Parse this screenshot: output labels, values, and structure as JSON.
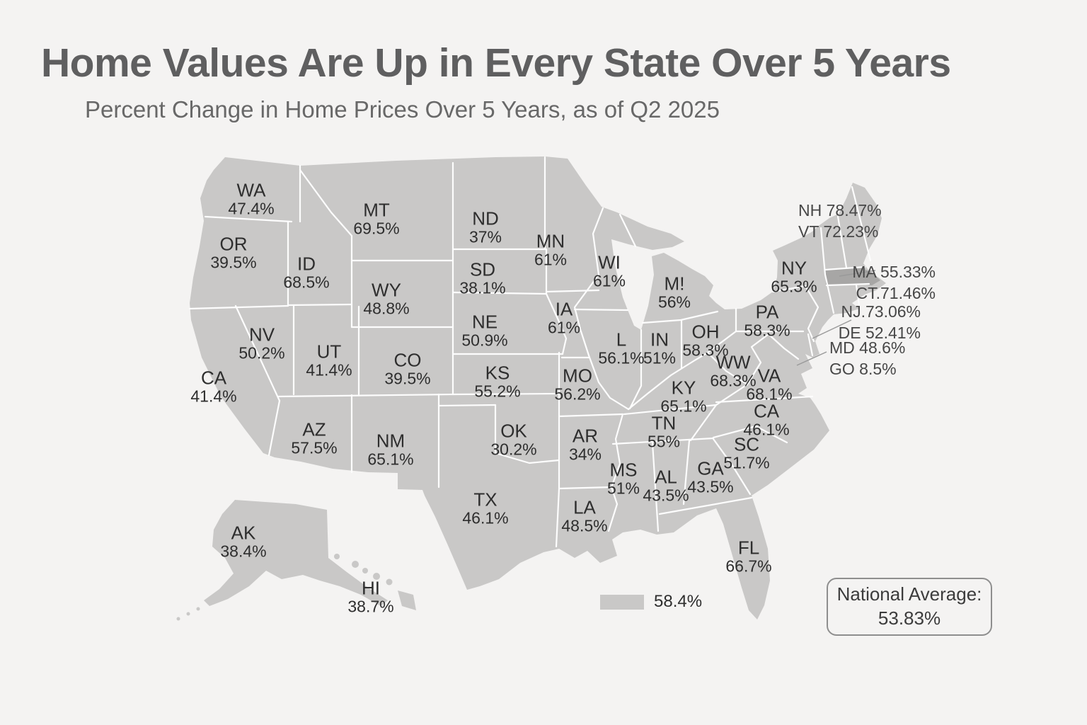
{
  "title": "Home Values Are Up in Every State Over 5 Years",
  "subtitle": "Percent Change in Home Prices Over 5 Years, as of Q2 2025",
  "map": {
    "states": [
      {
        "id": "WA",
        "abbr": "WA",
        "value": "47.4%"
      },
      {
        "id": "OR",
        "abbr": "OR",
        "value": "39.5%"
      },
      {
        "id": "CA",
        "abbr": "CA",
        "value": "41.4%"
      },
      {
        "id": "ID",
        "abbr": "ID",
        "value": "68.5%"
      },
      {
        "id": "NV",
        "abbr": "NV",
        "value": "50.2%"
      },
      {
        "id": "UT",
        "abbr": "UT",
        "value": "41.4%"
      },
      {
        "id": "AZ",
        "abbr": "AZ",
        "value": "57.5%"
      },
      {
        "id": "MT",
        "abbr": "MT",
        "value": "69.5%"
      },
      {
        "id": "WY",
        "abbr": "WY",
        "value": "48.8%"
      },
      {
        "id": "CO",
        "abbr": "CO",
        "value": "39.5%"
      },
      {
        "id": "NM",
        "abbr": "NM",
        "value": "65.1%"
      },
      {
        "id": "ND",
        "abbr": "ND",
        "value": "37%"
      },
      {
        "id": "SD",
        "abbr": "SD",
        "value": "38.1%"
      },
      {
        "id": "NE",
        "abbr": "NE",
        "value": "50.9%"
      },
      {
        "id": "KS",
        "abbr": "KS",
        "value": "55.2%"
      },
      {
        "id": "OK",
        "abbr": "OK",
        "value": "30.2%"
      },
      {
        "id": "TX",
        "abbr": "TX",
        "value": "46.1%"
      },
      {
        "id": "MN",
        "abbr": "MN",
        "value": "61%"
      },
      {
        "id": "IA",
        "abbr": "IA",
        "value": "61%"
      },
      {
        "id": "MO",
        "abbr": "MO",
        "value": "56.2%"
      },
      {
        "id": "WI",
        "abbr": "WI",
        "value": "61%"
      },
      {
        "id": "IL",
        "abbr": "L",
        "value": "56.1%"
      },
      {
        "id": "IN",
        "abbr": "IN",
        "value": "51%"
      },
      {
        "id": "MI",
        "abbr": "M!",
        "value": "56%"
      },
      {
        "id": "OH",
        "abbr": "OH",
        "value": "58.3%"
      },
      {
        "id": "KY",
        "abbr": "KY",
        "value": "65.1%"
      },
      {
        "id": "TN",
        "abbr": "TN",
        "value": "55%"
      },
      {
        "id": "WV",
        "abbr": "WW",
        "value": "68.3%"
      },
      {
        "id": "VA",
        "abbr": "VA",
        "value": "68.1%"
      },
      {
        "id": "NC",
        "abbr": "CA",
        "value": "46.1%"
      },
      {
        "id": "SC",
        "abbr": "SC",
        "value": "51.7%"
      },
      {
        "id": "GA",
        "abbr": "GA",
        "value": "43.5%"
      },
      {
        "id": "AL",
        "abbr": "AL",
        "value": "43.5%"
      },
      {
        "id": "MS",
        "abbr": "MS",
        "value": "51%"
      },
      {
        "id": "AR",
        "abbr": "AR",
        "value": "34%"
      },
      {
        "id": "LA",
        "abbr": "LA",
        "value": "48.5%"
      },
      {
        "id": "FL",
        "abbr": "FL",
        "value": "66.7%"
      },
      {
        "id": "NY",
        "abbr": "NY",
        "value": "65.3%"
      },
      {
        "id": "PA",
        "abbr": "PA",
        "value": "58.3%"
      },
      {
        "id": "AK",
        "abbr": "AK",
        "value": "38.4%"
      },
      {
        "id": "HI",
        "abbr": "HI",
        "value": "38.7%"
      }
    ],
    "callouts": [
      {
        "id": "nh-vt",
        "lines": [
          "NH 78.47%",
          "VT 72.23%"
        ]
      },
      {
        "id": "ma-ct",
        "lines": [
          "MA 55.33%",
          "CT.71.46%"
        ]
      },
      {
        "id": "nj-de",
        "lines": [
          "NJ.73.06%",
          "DE 52.41%"
        ]
      },
      {
        "id": "md-dc",
        "lines": [
          "MD 48.6%",
          "GO 8.5%"
        ]
      }
    ]
  },
  "legend": {
    "swatch_label": "58.4%"
  },
  "national_average": {
    "label": "National Average:",
    "value": "53.83%"
  },
  "colors": {
    "background": "#f4f3f2",
    "state_fill": "#c9c8c7",
    "highlight_fill": "#a7a6a5",
    "border": "#fdfdfd",
    "title_text": "#5f5f60",
    "label_text": "#2e2e2e"
  },
  "chart_data": {
    "type": "heatmap",
    "subtype": "us-choropleth-map",
    "title": "Home Values Are Up in Every State Over 5 Years",
    "metric": "Percent Change in Home Prices Over 5 Years, as of Q2 2025",
    "unit": "%",
    "values": {
      "WA": 47.4,
      "OR": 39.5,
      "CA": 41.4,
      "ID": 68.5,
      "NV": 50.2,
      "UT": 41.4,
      "AZ": 57.5,
      "MT": 69.5,
      "WY": 48.8,
      "CO": 39.5,
      "NM": 65.1,
      "ND": 37,
      "SD": 38.1,
      "NE": 50.9,
      "KS": 55.2,
      "OK": 30.2,
      "TX": 46.1,
      "MN": 61,
      "IA": 61,
      "MO": 56.2,
      "WI": 61,
      "IL": 56.1,
      "IN": 51,
      "MI": 56,
      "OH": 58.3,
      "KY": 65.1,
      "TN": 55,
      "WV": 68.3,
      "VA": 68.1,
      "NC": 46.1,
      "SC": 51.7,
      "GA": 43.5,
      "AL": 43.5,
      "MS": 51,
      "AR": 34,
      "LA": 48.5,
      "FL": 66.7,
      "NY": 65.3,
      "PA": 58.3,
      "AK": 38.4,
      "HI": 38.7,
      "NH": 78.47,
      "VT": 72.23,
      "MA": 55.33,
      "CT": 71.46,
      "NJ": 73.06,
      "DE": 52.41,
      "MD": 48.6,
      "DC": 8.5
    },
    "legend_sample": 58.4,
    "national_average": 53.83
  }
}
